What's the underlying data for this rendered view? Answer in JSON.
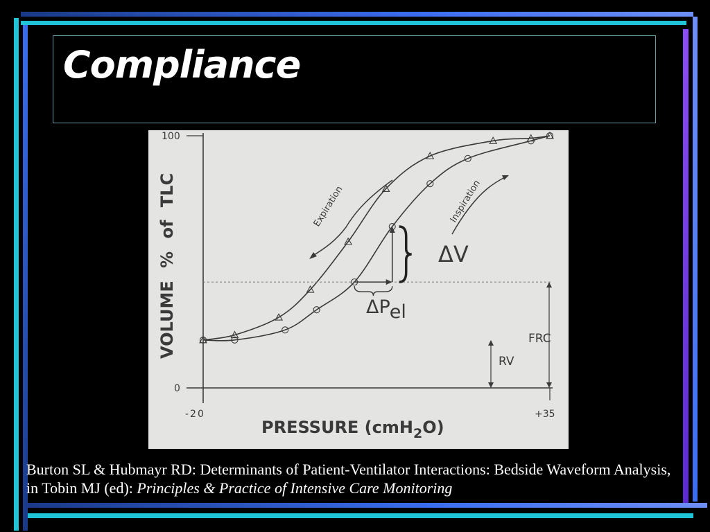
{
  "slide": {
    "title": "Compliance",
    "colors": {
      "background": "#000000",
      "bar_cyan": "#1fc5d6",
      "bar_blue": "#3b6ef0",
      "bar_purple": "#7a3df0",
      "figure_paper": "#e4e4e2",
      "ink": "#3a3a3a"
    }
  },
  "chart_data": {
    "type": "line",
    "title": "",
    "xlabel": "PRESSURE (cmH2O)",
    "ylabel": "VOLUME % of TLC",
    "xlim": [
      -20,
      35
    ],
    "ylim": [
      0,
      100
    ],
    "x_tick_labels": [
      "-20",
      "+35"
    ],
    "y_tick_labels": [
      "100",
      "0"
    ],
    "series": [
      {
        "name": "Expiration",
        "marker": "triangle",
        "points": [
          [
            -20,
            19
          ],
          [
            -15,
            21
          ],
          [
            -8,
            28
          ],
          [
            -3,
            39
          ],
          [
            3,
            58
          ],
          [
            9,
            79
          ],
          [
            16,
            92
          ],
          [
            26,
            98
          ],
          [
            32,
            99
          ],
          [
            35,
            100
          ]
        ]
      },
      {
        "name": "Inspiration",
        "marker": "circle",
        "points": [
          [
            -20,
            19
          ],
          [
            -15,
            19
          ],
          [
            -7,
            23
          ],
          [
            -2,
            31
          ],
          [
            4,
            42
          ],
          [
            10,
            64
          ],
          [
            16,
            81
          ],
          [
            22,
            91
          ],
          [
            32,
            98
          ],
          [
            35,
            100
          ]
        ]
      }
    ],
    "annotations": {
      "expiration": "Expiration",
      "inspiration": "Inspiration",
      "delta_v": "ΔV",
      "delta_p_base": "ΔP",
      "delta_p_sub": "el",
      "frc": "FRC",
      "rv": "RV"
    },
    "reference_levels": {
      "frc": 42,
      "rv": 19
    },
    "delta_v_range": [
      42,
      64
    ],
    "delta_p_range": [
      4,
      10
    ]
  },
  "citation": {
    "text": "Burton SL & Hubmayr RD: Determinants of Patient-Ventilator Interactions: Bedside Waveform Analysis, in Tobin MJ (ed): ",
    "book": "Principles & Practice of Intensive Care Monitoring"
  }
}
